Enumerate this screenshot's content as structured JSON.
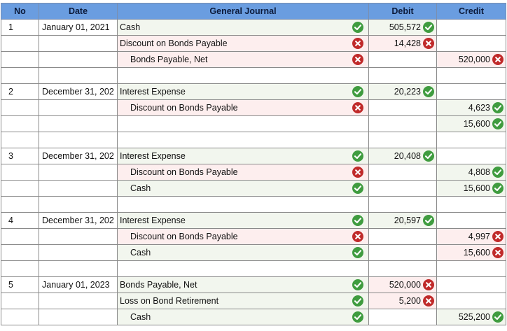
{
  "header": {
    "no": "No",
    "date": "Date",
    "journal": "General Journal",
    "debit": "Debit",
    "credit": "Credit"
  },
  "rows": [
    {
      "no": "1",
      "date": "January 01, 2021",
      "account": "Cash",
      "indent": false,
      "acct_status": "ok",
      "debit": "505,572",
      "debit_status": "ok",
      "credit": "",
      "credit_status": ""
    },
    {
      "no": "",
      "date": "",
      "account": "Discount on Bonds Payable",
      "indent": false,
      "acct_status": "bad",
      "debit": "14,428",
      "debit_status": "bad",
      "credit": "",
      "credit_status": ""
    },
    {
      "no": "",
      "date": "",
      "account": "Bonds Payable, Net",
      "indent": true,
      "acct_status": "bad",
      "debit": "",
      "debit_status": "",
      "credit": "520,000",
      "credit_status": "bad"
    },
    {
      "blank": true
    },
    {
      "no": "2",
      "date": "December 31, 202",
      "account": "Interest Expense",
      "indent": false,
      "acct_status": "ok",
      "debit": "20,223",
      "debit_status": "ok",
      "credit": "",
      "credit_status": ""
    },
    {
      "no": "",
      "date": "",
      "account": "Discount on Bonds Payable",
      "indent": true,
      "acct_status": "bad",
      "debit": "",
      "debit_status": "",
      "credit": "4,623",
      "credit_status": "ok"
    },
    {
      "no": "",
      "date": "",
      "account": "",
      "indent": false,
      "acct_status": "",
      "debit": "",
      "debit_status": "",
      "credit": "15,600",
      "credit_status": "ok"
    },
    {
      "blank": true
    },
    {
      "no": "3",
      "date": "December 31, 202",
      "account": "Interest Expense",
      "indent": false,
      "acct_status": "ok",
      "debit": "20,408",
      "debit_status": "ok",
      "credit": "",
      "credit_status": ""
    },
    {
      "no": "",
      "date": "",
      "account": "Discount on Bonds Payable",
      "indent": true,
      "acct_status": "bad",
      "debit": "",
      "debit_status": "",
      "credit": "4,808",
      "credit_status": "ok"
    },
    {
      "no": "",
      "date": "",
      "account": "Cash",
      "indent": true,
      "acct_status": "ok",
      "debit": "",
      "debit_status": "",
      "credit": "15,600",
      "credit_status": "ok"
    },
    {
      "blank": true
    },
    {
      "no": "4",
      "date": "December 31, 202",
      "account": "Interest Expense",
      "indent": false,
      "acct_status": "ok",
      "debit": "20,597",
      "debit_status": "ok",
      "credit": "",
      "credit_status": ""
    },
    {
      "no": "",
      "date": "",
      "account": "Discount on Bonds Payable",
      "indent": true,
      "acct_status": "bad",
      "debit": "",
      "debit_status": "",
      "credit": "4,997",
      "credit_status": "bad"
    },
    {
      "no": "",
      "date": "",
      "account": "Cash",
      "indent": true,
      "acct_status": "ok",
      "debit": "",
      "debit_status": "",
      "credit": "15,600",
      "credit_status": "bad"
    },
    {
      "blank": true
    },
    {
      "no": "5",
      "date": "January 01, 2023",
      "account": "Bonds Payable, Net",
      "indent": false,
      "acct_status": "ok",
      "debit": "520,000",
      "debit_status": "bad",
      "credit": "",
      "credit_status": ""
    },
    {
      "no": "",
      "date": "",
      "account": "Loss on Bond Retirement",
      "indent": false,
      "acct_status": "ok",
      "debit": "5,200",
      "debit_status": "bad",
      "credit": "",
      "credit_status": ""
    },
    {
      "no": "",
      "date": "",
      "account": "Cash",
      "indent": true,
      "acct_status": "ok",
      "debit": "",
      "debit_status": "",
      "credit": "525,200",
      "credit_status": "ok"
    }
  ]
}
